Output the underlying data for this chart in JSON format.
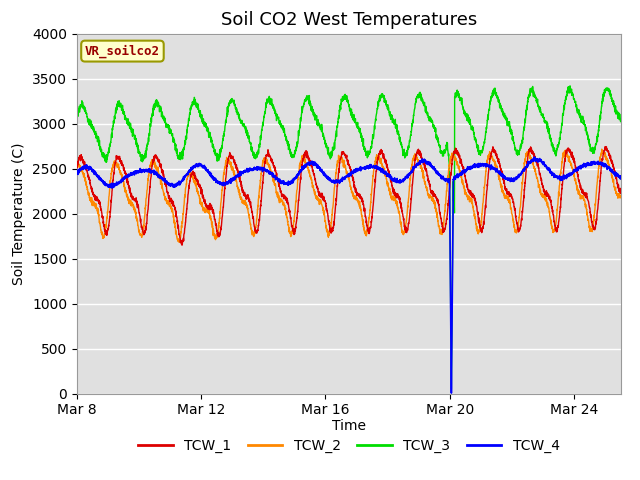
{
  "title": "Soil CO2 West Temperatures",
  "ylabel": "Soil Temperature (C)",
  "xlabel": "Time",
  "annotation": "VR_soilco2",
  "ylim": [
    0,
    4000
  ],
  "yticks": [
    0,
    500,
    1000,
    1500,
    2000,
    2500,
    3000,
    3500,
    4000
  ],
  "xtick_labels": [
    "Mar 8",
    "Mar 12",
    "Mar 16",
    "Mar 20",
    "Mar 24"
  ],
  "xtick_positions": [
    0,
    4,
    8,
    12,
    16
  ],
  "xlim": [
    0,
    17.5
  ],
  "colors": {
    "TCW_1": "#dd0000",
    "TCW_2": "#ff8800",
    "TCW_3": "#00dd00",
    "TCW_4": "#0000ff"
  },
  "bg_color": "#e0e0e0",
  "annotation_bg": "#ffffcc",
  "annotation_border": "#999900",
  "annotation_text_color": "#990000",
  "title_fontsize": 13,
  "axis_label_fontsize": 10,
  "tick_fontsize": 10,
  "legend_fontsize": 10
}
